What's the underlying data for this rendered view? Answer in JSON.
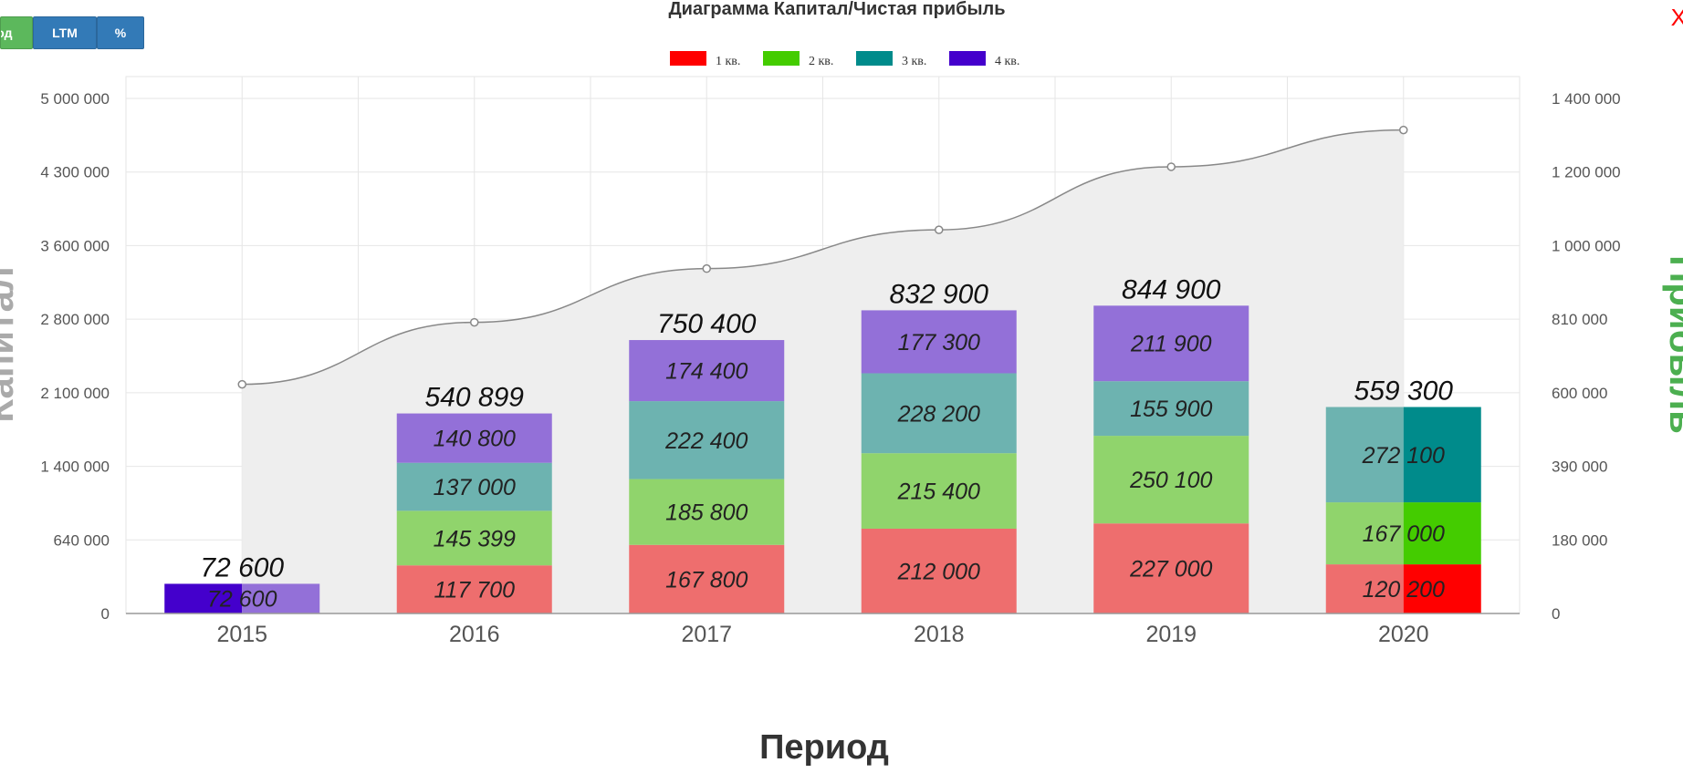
{
  "toolbar": {
    "period_label": "Год",
    "ltm_label": "LTM",
    "percent_label": "%"
  },
  "close_label": "X",
  "colors": {
    "q1": "#ff0000",
    "q2": "#44cc00",
    "q3": "#008b8b",
    "q4": "#4400cc",
    "q1_light": "#ee6e6e",
    "q2_light": "#90d46c",
    "q3_light": "#6db3b0",
    "q4_light": "#9370d8",
    "area_fill": "#eeeeee",
    "line": "#888888",
    "grid": "#e6e6e6"
  },
  "chart_data": {
    "type": "bar",
    "title": "Диаграмма Капитал/Чистая прибыль",
    "xlabel": "Период",
    "ylabel_left": "Капитал",
    "ylabel_right": "Прибыль",
    "categories": [
      "2015",
      "2016",
      "2017",
      "2018",
      "2019",
      "2020"
    ],
    "legend_position": "top-center",
    "grid": true,
    "left_axis": {
      "ticks": [
        "0",
        "640 000",
        "1 400 000",
        "2 100 000",
        "2 800 000",
        "3 600 000",
        "4 300 000",
        "5 000 000"
      ]
    },
    "right_axis": {
      "ticks": [
        "0",
        "180 000",
        "390 000",
        "600 000",
        "810 000",
        "1 000 000",
        "1 200 000",
        "1 400 000"
      ]
    },
    "series": [
      {
        "name": "1 кв.",
        "values": [
          0,
          117700,
          167800,
          212000,
          227000,
          120200
        ]
      },
      {
        "name": "2 кв.",
        "values": [
          0,
          145399,
          185800,
          215400,
          250100,
          167000
        ]
      },
      {
        "name": "3 кв.",
        "values": [
          0,
          137000,
          222400,
          228200,
          155900,
          272100
        ]
      },
      {
        "name": "4 кв.",
        "values": [
          72600,
          140800,
          174400,
          177300,
          211900,
          0
        ]
      }
    ],
    "segment_labels": [
      [
        "",
        "",
        "",
        "72 600"
      ],
      [
        "117 700",
        "145 399",
        "137 000",
        "140 800"
      ],
      [
        "167 800",
        "185 800",
        "222 400",
        "174 400"
      ],
      [
        "212 000",
        "215 400",
        "228 200",
        "177 300"
      ],
      [
        "227 000",
        "250 100",
        "155 900",
        "211 900"
      ],
      [
        "120 200",
        "167 000",
        "272 100",
        ""
      ]
    ],
    "totals": [
      72600,
      540899,
      750400,
      832900,
      844900,
      559300
    ],
    "total_labels": [
      "72 600",
      "540 899",
      "750 400",
      "832 900",
      "844 900",
      "559 300"
    ],
    "capital_line": {
      "name": "Капитал",
      "values": [
        2180000,
        2770000,
        3350000,
        3750000,
        4350000,
        4700000
      ]
    },
    "highlighted_half": {
      "category": "2020",
      "style": "saturated right half"
    }
  }
}
